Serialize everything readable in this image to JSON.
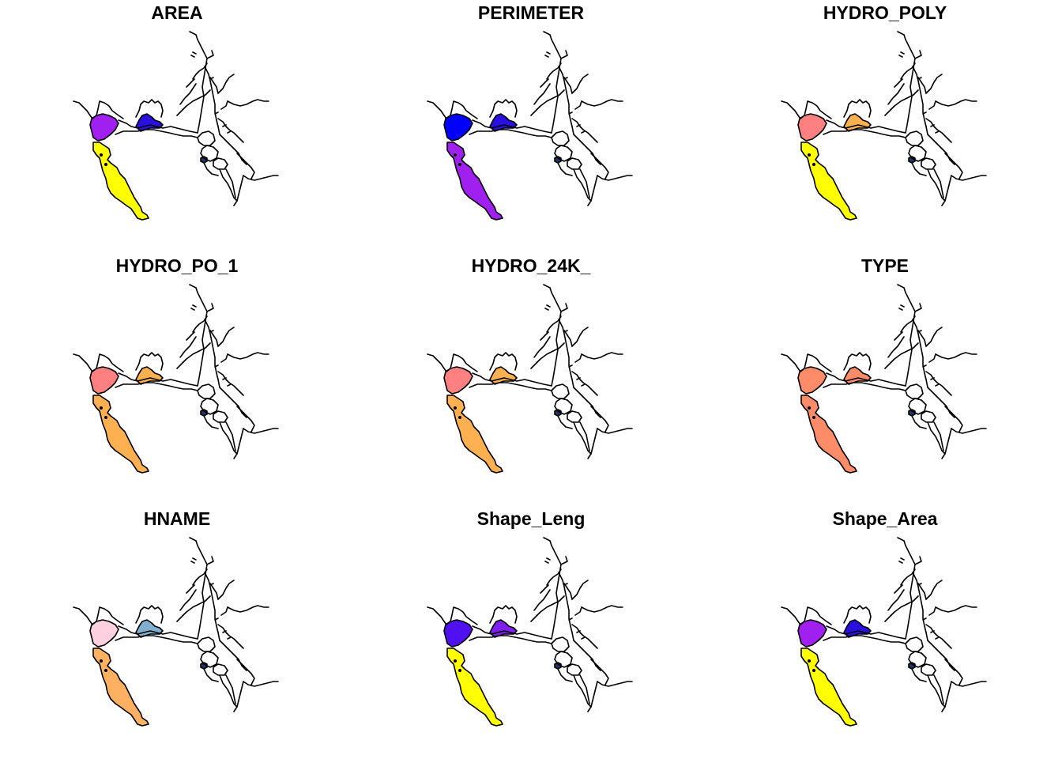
{
  "panels": [
    {
      "title": "AREA",
      "colors": {
        "north_bay": "#A020F0",
        "south_bay": "#FFFF00",
        "suisun": "#2A0FE0",
        "delta_spot": "#223366"
      }
    },
    {
      "title": "PERIMETER",
      "colors": {
        "north_bay": "#0000FF",
        "south_bay": "#A020F0",
        "suisun": "#2A0FE0",
        "delta_spot": "#223366"
      }
    },
    {
      "title": "HYDRO_POLY",
      "colors": {
        "north_bay": "#FF8080",
        "south_bay": "#FFFF00",
        "suisun": "#FFB050",
        "delta_spot": "#223366"
      }
    },
    {
      "title": "HYDRO_PO_1",
      "colors": {
        "north_bay": "#FF8080",
        "south_bay": "#FFB050",
        "suisun": "#FFB050",
        "delta_spot": "#223366"
      }
    },
    {
      "title": "HYDRO_24K_",
      "colors": {
        "north_bay": "#FF8080",
        "south_bay": "#FFB050",
        "suisun": "#FFB050",
        "delta_spot": "#223366"
      }
    },
    {
      "title": "TYPE",
      "colors": {
        "north_bay": "#FF8C69",
        "south_bay": "#FF8C69",
        "suisun": "#FF8C69",
        "delta_spot": "#223366"
      }
    },
    {
      "title": "HNAME",
      "colors": {
        "north_bay": "#FFD0E0",
        "south_bay": "#FFB060",
        "suisun": "#80B0D0",
        "delta_spot": "#223366"
      }
    },
    {
      "title": "Shape_Leng",
      "colors": {
        "north_bay": "#5010F0",
        "south_bay": "#FFFF00",
        "suisun": "#8020F0",
        "delta_spot": "#223366"
      }
    },
    {
      "title": "Shape_Area",
      "colors": {
        "north_bay": "#A020F0",
        "south_bay": "#FFFF00",
        "suisun": "#2A0FE0",
        "delta_spot": "#223366"
      }
    }
  ]
}
